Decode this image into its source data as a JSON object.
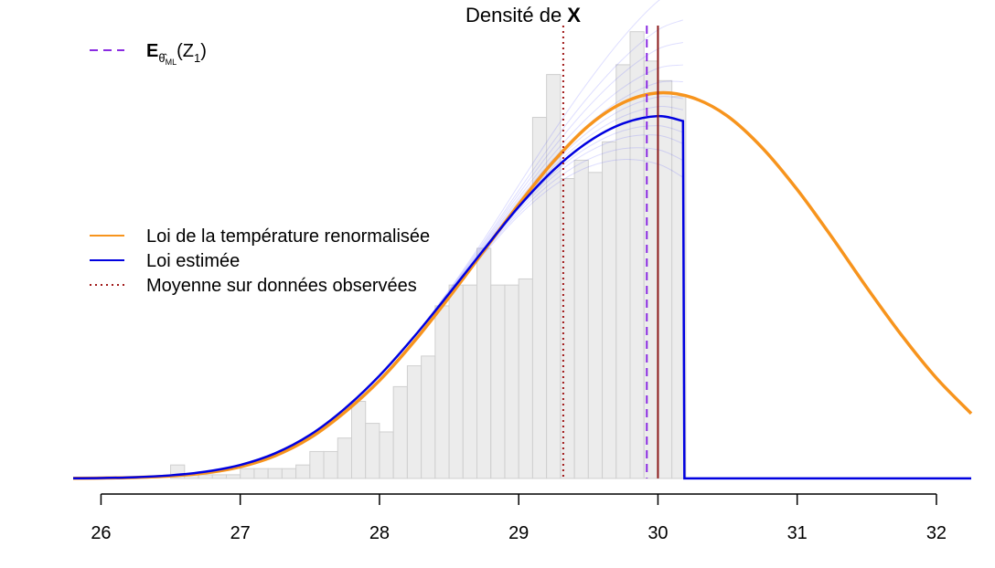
{
  "chart_data": {
    "type": "histogram-density",
    "title": {
      "prefix": "Densité de ",
      "bold": "X"
    },
    "xlim": [
      25.8,
      32.25
    ],
    "ylim": [
      -0.012,
      0.37
    ],
    "xticks": [
      "26",
      "27",
      "28",
      "29",
      "30",
      "31",
      "32"
    ],
    "xtick_values": [
      26,
      27,
      28,
      29,
      30,
      31,
      32
    ],
    "grid": false,
    "histogram": {
      "bin_width": 0.1,
      "bins": [
        {
          "x0": 26.5,
          "h": 0.011
        },
        {
          "x0": 26.6,
          "h": 0.003
        },
        {
          "x0": 26.7,
          "h": 0.003
        },
        {
          "x0": 26.8,
          "h": 0.003
        },
        {
          "x0": 26.9,
          "h": 0.003
        },
        {
          "x0": 27.0,
          "h": 0.008
        },
        {
          "x0": 27.1,
          "h": 0.008
        },
        {
          "x0": 27.2,
          "h": 0.008
        },
        {
          "x0": 27.3,
          "h": 0.008
        },
        {
          "x0": 27.4,
          "h": 0.011
        },
        {
          "x0": 27.5,
          "h": 0.022
        },
        {
          "x0": 27.6,
          "h": 0.022
        },
        {
          "x0": 27.7,
          "h": 0.033
        },
        {
          "x0": 27.8,
          "h": 0.063
        },
        {
          "x0": 27.9,
          "h": 0.045
        },
        {
          "x0": 28.0,
          "h": 0.038
        },
        {
          "x0": 28.1,
          "h": 0.075
        },
        {
          "x0": 28.2,
          "h": 0.092
        },
        {
          "x0": 28.3,
          "h": 0.1
        },
        {
          "x0": 28.4,
          "h": 0.141
        },
        {
          "x0": 28.5,
          "h": 0.158
        },
        {
          "x0": 28.6,
          "h": 0.158
        },
        {
          "x0": 28.7,
          "h": 0.188
        },
        {
          "x0": 28.8,
          "h": 0.158
        },
        {
          "x0": 28.9,
          "h": 0.158
        },
        {
          "x0": 29.0,
          "h": 0.163
        },
        {
          "x0": 29.1,
          "h": 0.295
        },
        {
          "x0": 29.2,
          "h": 0.33
        },
        {
          "x0": 29.3,
          "h": 0.245
        },
        {
          "x0": 29.4,
          "h": 0.26
        },
        {
          "x0": 29.5,
          "h": 0.25
        },
        {
          "x0": 29.6,
          "h": 0.275
        },
        {
          "x0": 29.7,
          "h": 0.338
        },
        {
          "x0": 29.8,
          "h": 0.365
        },
        {
          "x0": 29.9,
          "h": 0.341
        },
        {
          "x0": 30.0,
          "h": 0.325
        },
        {
          "x0": 30.1,
          "h": 0.312
        }
      ]
    },
    "series": [
      {
        "name": "Loi de la température renormalisée",
        "color": "#f7941d",
        "x": [
          25.8,
          26.0,
          26.25,
          26.5,
          26.75,
          27.0,
          27.25,
          27.5,
          27.75,
          28.0,
          28.25,
          28.5,
          28.75,
          29.0,
          29.25,
          29.5,
          29.75,
          30.0,
          30.25,
          30.5,
          30.75,
          31.0,
          31.25,
          31.5,
          31.75,
          32.0,
          32.25
        ],
        "y": [
          0.0001,
          0.0003,
          0.0008,
          0.002,
          0.0045,
          0.0095,
          0.0185,
          0.033,
          0.054,
          0.08,
          0.112,
          0.148,
          0.186,
          0.224,
          0.259,
          0.288,
          0.307,
          0.315,
          0.311,
          0.296,
          0.27,
          0.236,
          0.197,
          0.156,
          0.117,
          0.082,
          0.053
        ]
      },
      {
        "name": "Loi estimée",
        "color": "#0000e0",
        "x": [
          25.8,
          26.0,
          26.25,
          26.5,
          26.75,
          27.0,
          27.25,
          27.5,
          27.75,
          28.0,
          28.25,
          28.5,
          28.75,
          29.0,
          29.25,
          29.5,
          29.75,
          30.0,
          30.18,
          30.19,
          32.25
        ],
        "y": [
          0.0001,
          0.0003,
          0.001,
          0.0025,
          0.0055,
          0.011,
          0.0205,
          0.0355,
          0.057,
          0.084,
          0.116,
          0.151,
          0.187,
          0.222,
          0.252,
          0.275,
          0.29,
          0.296,
          0.292,
          0.0,
          0.0
        ]
      },
      {
        "name": "Moyenne sur données observées",
        "style": "dotted",
        "color": "#a01818",
        "x": 29.32
      }
    ],
    "vlines": [
      {
        "id": "expectation",
        "x": 29.92,
        "color": "#8a2be2",
        "style": "dashed"
      },
      {
        "id": "true",
        "x": 30.0,
        "color": "#8b1a1a",
        "style": "solid"
      }
    ],
    "legend_top": {
      "placement": "top-left",
      "label_main": "E",
      "label_sub": "θ̂",
      "label_subsub": "ML",
      "label_arg": "(Z",
      "label_arg_sub": "1",
      "label_close": ")"
    },
    "legend_mid": {
      "placement": "middle-left"
    }
  }
}
